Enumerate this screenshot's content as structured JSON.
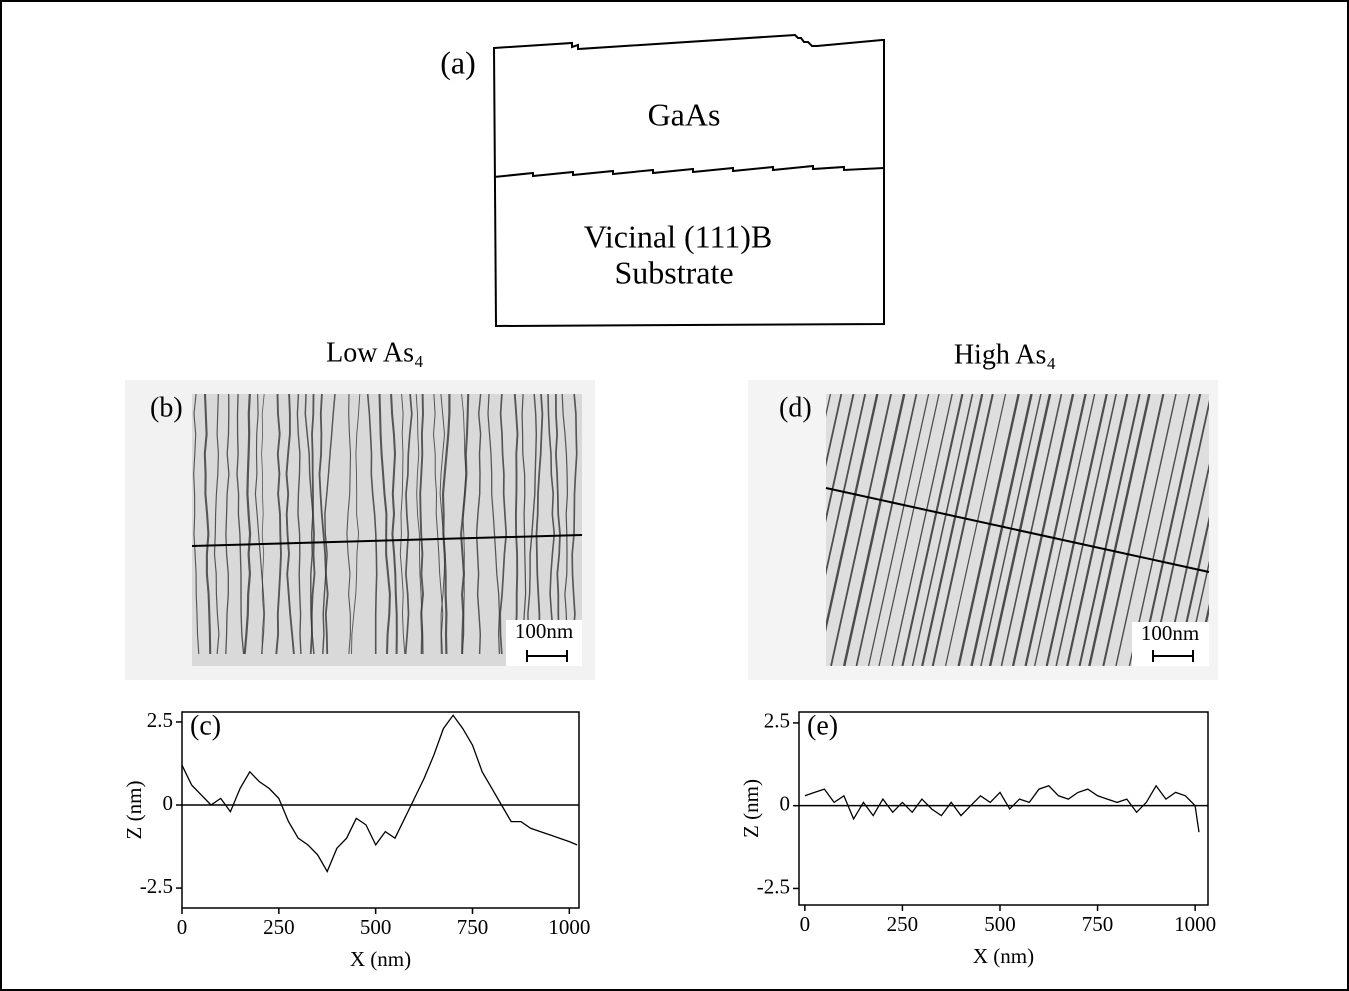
{
  "diagram": {
    "label": "(a)",
    "top_layer": "GaAs",
    "substrate": [
      "Vicinal (111)B",
      "Substrate"
    ]
  },
  "images": [
    {
      "title": "Low As₄",
      "label": "(b)",
      "scale_bar": "100nm"
    },
    {
      "title": "High As₄",
      "label": "(d)",
      "scale_bar": "100nm"
    }
  ],
  "chart_data": [
    {
      "type": "line",
      "label": "(c)",
      "x_label": "X (nm)",
      "y_label": "Z (nm)",
      "color": "#000000",
      "x": [
        0,
        25,
        50,
        75,
        100,
        125,
        150,
        175,
        200,
        225,
        250,
        275,
        300,
        325,
        350,
        375,
        400,
        425,
        450,
        475,
        500,
        525,
        550,
        575,
        600,
        625,
        650,
        675,
        700,
        725,
        750,
        775,
        800,
        825,
        850,
        875,
        900,
        925,
        950,
        975,
        1000,
        1020
      ],
      "values": [
        1.2,
        0.6,
        0.3,
        0.0,
        0.2,
        -0.2,
        0.5,
        1.0,
        0.7,
        0.5,
        0.2,
        -0.5,
        -1.0,
        -1.2,
        -1.5,
        -2.0,
        -1.3,
        -1.0,
        -0.4,
        -0.6,
        -1.2,
        -0.8,
        -1.0,
        -0.4,
        0.2,
        0.8,
        1.5,
        2.3,
        2.7,
        2.3,
        1.8,
        1.0,
        0.5,
        0.0,
        -0.5,
        -0.5,
        -0.7,
        -0.8,
        -0.9,
        -1.0,
        -1.1,
        -1.2
      ],
      "xlim": [
        0,
        1025
      ],
      "ylim": [
        -3.1,
        2.8
      ],
      "xticks": [
        0,
        250,
        500,
        750,
        1000
      ],
      "yticks": [
        -2.5,
        0,
        2.5
      ],
      "reference_line": 0
    },
    {
      "type": "line",
      "label": "(e)",
      "x_label": "X (nm)",
      "y_label": "Z (nm)",
      "color": "#000000",
      "x": [
        0,
        25,
        50,
        75,
        100,
        125,
        150,
        175,
        200,
        225,
        250,
        275,
        300,
        325,
        350,
        375,
        400,
        425,
        450,
        475,
        500,
        525,
        550,
        575,
        600,
        625,
        650,
        675,
        700,
        725,
        750,
        775,
        800,
        825,
        850,
        875,
        900,
        925,
        950,
        975,
        1000,
        1010
      ],
      "values": [
        0.3,
        0.4,
        0.5,
        0.1,
        0.3,
        -0.4,
        0.1,
        -0.3,
        0.2,
        -0.2,
        0.1,
        -0.2,
        0.2,
        -0.1,
        -0.3,
        0.1,
        -0.3,
        0.0,
        0.3,
        0.1,
        0.4,
        -0.1,
        0.2,
        0.1,
        0.5,
        0.6,
        0.3,
        0.2,
        0.4,
        0.5,
        0.3,
        0.2,
        0.1,
        0.2,
        -0.2,
        0.1,
        0.6,
        0.2,
        0.4,
        0.3,
        0.0,
        -0.8
      ],
      "xlim": [
        -15,
        1033
      ],
      "ylim": [
        -3.0,
        2.83
      ],
      "xticks": [
        0,
        250,
        500,
        750,
        1000
      ],
      "yticks": [
        -2.5,
        0,
        2.5
      ],
      "reference_line": 0
    }
  ]
}
